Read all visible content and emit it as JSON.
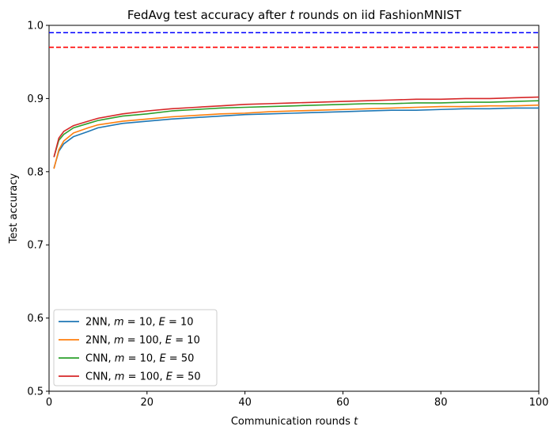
{
  "chart_data": {
    "type": "line",
    "title": "FedAvg test accuracy after t rounds on iid FashionMNIST",
    "xlabel": "Communication rounds t",
    "ylabel": "Test accuracy",
    "xlim": [
      0,
      100
    ],
    "ylim": [
      0.5,
      1.0
    ],
    "x_ticks": [
      0,
      20,
      40,
      60,
      80,
      100
    ],
    "x_tick_labels": [
      "0",
      "20",
      "40",
      "60",
      "80",
      "100"
    ],
    "y_ticks": [
      0.5,
      0.6,
      0.7,
      0.8,
      0.9,
      1.0
    ],
    "y_tick_labels": [
      "0.5",
      "0.6",
      "0.7",
      "0.8",
      "0.9",
      "1.0"
    ],
    "grid": false,
    "legend_position": "lower-left",
    "reference_lines": [
      {
        "y": 0.99,
        "color": "#0000ff",
        "style": "dashed"
      },
      {
        "y": 0.97,
        "color": "#ff0000",
        "style": "dashed"
      }
    ],
    "series": [
      {
        "name": "2NN, m = 10, E = 10",
        "color": "#1f77b4",
        "x": [
          1,
          2,
          3,
          5,
          8,
          10,
          15,
          20,
          25,
          30,
          35,
          40,
          45,
          50,
          55,
          60,
          65,
          70,
          75,
          80,
          85,
          90,
          95,
          100
        ],
        "values": [
          0.805,
          0.828,
          0.838,
          0.848,
          0.855,
          0.86,
          0.866,
          0.869,
          0.872,
          0.874,
          0.876,
          0.878,
          0.879,
          0.88,
          0.881,
          0.882,
          0.883,
          0.884,
          0.884,
          0.885,
          0.886,
          0.886,
          0.887,
          0.887
        ]
      },
      {
        "name": "2NN, m = 100, E = 10",
        "color": "#ff7f0e",
        "x": [
          1,
          2,
          3,
          5,
          8,
          10,
          15,
          20,
          25,
          30,
          35,
          40,
          45,
          50,
          55,
          60,
          65,
          70,
          75,
          80,
          85,
          90,
          95,
          100
        ],
        "values": [
          0.804,
          0.83,
          0.842,
          0.853,
          0.86,
          0.864,
          0.869,
          0.872,
          0.875,
          0.877,
          0.879,
          0.88,
          0.882,
          0.883,
          0.884,
          0.885,
          0.886,
          0.887,
          0.888,
          0.889,
          0.889,
          0.89,
          0.89,
          0.891
        ]
      },
      {
        "name": "CNN, m = 10, E = 50",
        "color": "#2ca02c",
        "x": [
          1,
          2,
          3,
          5,
          8,
          10,
          15,
          20,
          25,
          30,
          35,
          40,
          45,
          50,
          55,
          60,
          65,
          70,
          75,
          80,
          85,
          90,
          95,
          100
        ],
        "values": [
          0.82,
          0.843,
          0.851,
          0.86,
          0.866,
          0.87,
          0.876,
          0.879,
          0.883,
          0.885,
          0.887,
          0.888,
          0.889,
          0.89,
          0.891,
          0.892,
          0.893,
          0.893,
          0.894,
          0.894,
          0.895,
          0.895,
          0.896,
          0.897
        ]
      },
      {
        "name": "CNN, m = 100, E = 50",
        "color": "#d62728",
        "x": [
          1,
          2,
          3,
          5,
          8,
          10,
          15,
          20,
          25,
          30,
          35,
          40,
          45,
          50,
          55,
          60,
          65,
          70,
          75,
          80,
          85,
          90,
          95,
          100
        ],
        "values": [
          0.82,
          0.846,
          0.855,
          0.863,
          0.869,
          0.873,
          0.879,
          0.883,
          0.886,
          0.888,
          0.89,
          0.892,
          0.893,
          0.894,
          0.895,
          0.896,
          0.897,
          0.898,
          0.899,
          0.899,
          0.9,
          0.9,
          0.901,
          0.902
        ]
      }
    ]
  }
}
